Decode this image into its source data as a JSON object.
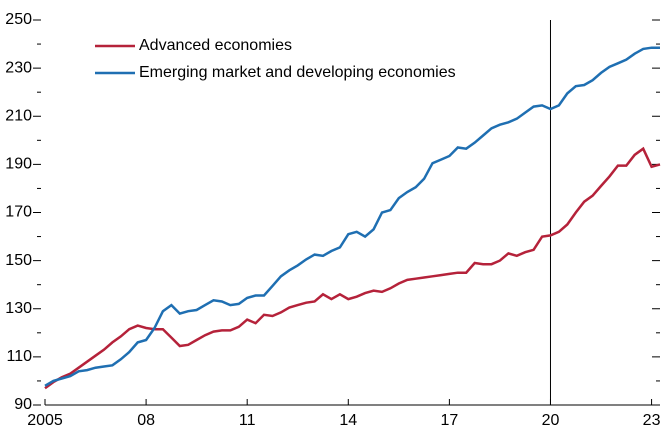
{
  "chart_data": {
    "type": "line",
    "x": [
      2005,
      2005.25,
      2005.5,
      2005.75,
      2006,
      2006.25,
      2006.5,
      2006.75,
      2007,
      2007.25,
      2007.5,
      2007.75,
      2008,
      2008.25,
      2008.5,
      2008.75,
      2009,
      2009.25,
      2009.5,
      2009.75,
      2010,
      2010.25,
      2010.5,
      2010.75,
      2011,
      2011.25,
      2011.5,
      2011.75,
      2012,
      2012.25,
      2012.5,
      2012.75,
      2013,
      2013.25,
      2013.5,
      2013.75,
      2014,
      2014.25,
      2014.5,
      2014.75,
      2015,
      2015.25,
      2015.5,
      2015.75,
      2016,
      2016.25,
      2016.5,
      2016.75,
      2017,
      2017.25,
      2017.5,
      2017.75,
      2018,
      2018.25,
      2018.5,
      2018.75,
      2019,
      2019.25,
      2019.5,
      2019.75,
      2020,
      2020.25,
      2020.5,
      2020.75,
      2021,
      2021.25,
      2021.5,
      2021.75,
      2022,
      2022.25,
      2022.5,
      2022.75,
      2023,
      2023.25
    ],
    "series": [
      {
        "name": "Advanced economies",
        "color": "#b5223a",
        "values": [
          97,
          99.5,
          101.5,
          103,
          105.5,
          108,
          110.5,
          113,
          116,
          118.5,
          121.5,
          123,
          122,
          121.5,
          121.5,
          118,
          114.5,
          115,
          117,
          119,
          120.5,
          121,
          121,
          122.5,
          125.5,
          124,
          127.5,
          127,
          128.5,
          130.5,
          131.5,
          132.5,
          133,
          136,
          134,
          136,
          134,
          135,
          136.5,
          137.5,
          137,
          138.5,
          140.5,
          142,
          142.5,
          143,
          143.5,
          144,
          144.5,
          145,
          145,
          149,
          148.5,
          148.5,
          150,
          153,
          152,
          153.5,
          154.5,
          160,
          160.5,
          162,
          165,
          170,
          174.5,
          177,
          181,
          185,
          189.5,
          189.5,
          194,
          196.5,
          189,
          190
        ]
      },
      {
        "name": "Emerging market and developing economies",
        "color": "#1f6fb2",
        "values": [
          98,
          100,
          101,
          102,
          104,
          104.5,
          105.5,
          106,
          106.5,
          109,
          112,
          116,
          117,
          122,
          129,
          131.5,
          128,
          129,
          129.5,
          131.5,
          133.5,
          133,
          131.5,
          132,
          134.5,
          135.5,
          135.5,
          139.5,
          143.5,
          146,
          148,
          150.5,
          152.5,
          152,
          154,
          155.5,
          161,
          162,
          160,
          163,
          170,
          171,
          176,
          178.5,
          180.5,
          184,
          190.5,
          192,
          193.5,
          197,
          196.5,
          199,
          202,
          205,
          206.5,
          207.5,
          209,
          211.5,
          214,
          214.5,
          213,
          214.5,
          219.5,
          222.5,
          223,
          225,
          228,
          230.5,
          232,
          233.5,
          236,
          238,
          238.5,
          238.5
        ]
      }
    ],
    "xlim": [
      2005,
      2023.25
    ],
    "xticks": [
      2005,
      {
        "value": 2008,
        "label": "08"
      },
      {
        "value": 2011,
        "label": "11"
      },
      {
        "value": 2014,
        "label": "14"
      },
      {
        "value": 2017,
        "label": "17"
      },
      {
        "value": 2020,
        "label": "20"
      },
      {
        "value": 2023,
        "label": "23"
      }
    ],
    "ylim": [
      90,
      250
    ],
    "yticks": [
      90,
      110,
      130,
      150,
      170,
      190,
      210,
      230,
      250
    ],
    "yminorticks": [
      100,
      120,
      140,
      160,
      180,
      200,
      220,
      240
    ],
    "vlines": [
      2020
    ],
    "legend": "upper-left"
  }
}
